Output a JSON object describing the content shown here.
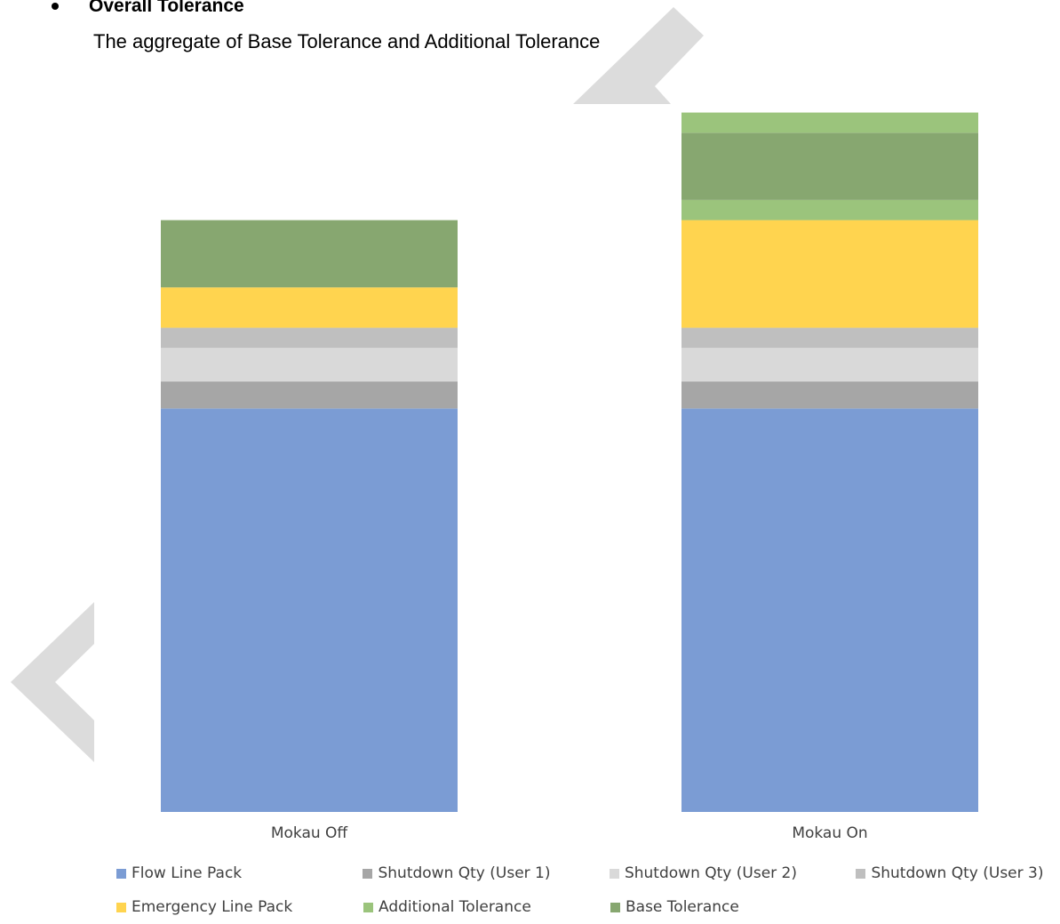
{
  "document": {
    "heading": "Overall Tolerance",
    "description": "The aggregate of Base Tolerance and Additional Tolerance"
  },
  "chart_data": {
    "type": "bar",
    "stacked": true,
    "categories": [
      "Mokau Off",
      "Mokau On"
    ],
    "series": [
      {
        "name": "Flow Line Pack",
        "color": "#7b9cd4",
        "values": [
          60,
          60
        ]
      },
      {
        "name": "Shutdown Qty (User 1)",
        "color": "#a6a6a6",
        "values": [
          4,
          4
        ]
      },
      {
        "name": "Shutdown Qty (User 2)",
        "color": "#d9d9d9",
        "values": [
          5,
          5
        ]
      },
      {
        "name": "Shutdown Qty (User 3)",
        "color": "#bfbfbf",
        "values": [
          3,
          3
        ]
      },
      {
        "name": "Emergency Line Pack",
        "color": "#ffd44f",
        "values": [
          6,
          16
        ]
      },
      {
        "name": "Additional Tolerance",
        "color": "#9bc47c",
        "values": [
          0,
          3
        ]
      },
      {
        "name": "Base Tolerance",
        "color": "#87a770",
        "values": [
          10,
          10
        ]
      },
      {
        "name": "Additional Tolerance",
        "color": "#9bc47c",
        "values": [
          0,
          3
        ]
      }
    ],
    "legend": {
      "placement": "bottom",
      "rows": [
        [
          "Flow Line Pack",
          "Shutdown Qty (User 1)",
          "Shutdown Qty (User 2)",
          "Shutdown Qty (User 3)"
        ],
        [
          "Emergency Line Pack",
          "Additional Tolerance",
          "Base Tolerance"
        ]
      ]
    },
    "ylim": [
      0,
      105
    ],
    "axes_visible": false,
    "grid": false
  }
}
